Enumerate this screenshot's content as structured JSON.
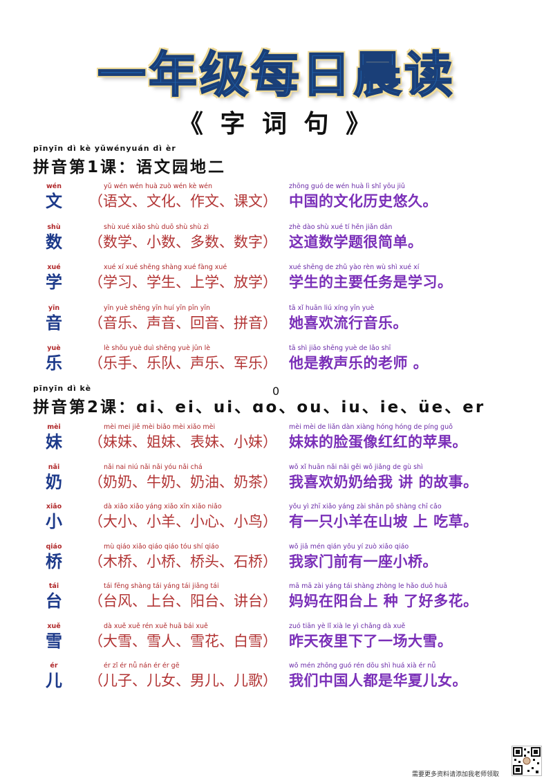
{
  "title": "一年级每日晨读",
  "subtitle": "《 字 词 句 》",
  "lessons": [
    {
      "pinyin": "pīnyīn dì  kè    yǔwényuán dì èr",
      "title": "拼音第1课：语文园地二",
      "rows": [
        {
          "char_py": "wén",
          "char": "文",
          "words_py": "yǔ wén   wén huà   zuò wén   kè wén",
          "words": "（语文、文化、作文、课文）",
          "sent_py": "zhōng guó de wén huà lì shǐ yōu jiǔ",
          "sentence": "中国的文化历史悠久。"
        },
        {
          "char_py": "shù",
          "char": "数",
          "words_py": "shù xué   xiǎo shù   duō shù   shù zì",
          "words": "（数学、小数、多数、数字）",
          "sent_py": "zhè dào shù xué tí hěn jiǎn dān",
          "sentence": "这道数学题很简单。"
        },
        {
          "char_py": "xué",
          "char": "学",
          "words_py": "xué xí   xué shēng   shàng xué   fàng xué",
          "words": "（学习、学生、上学、放学）",
          "sent_py": "xué shēng de zhǔ yào rèn wù shì xué xí",
          "sentence": "学生的主要任务是学习。"
        },
        {
          "char_py": "yīn",
          "char": "音",
          "words_py": "yīn yuè   shēng yīn   huí yīn   pīn yīn",
          "words": "（音乐、声音、回音、拼音）",
          "sent_py": "tā xǐ huān liú xíng yīn yuè",
          "sentence": "她喜欢流行音乐。"
        },
        {
          "char_py": "yuè",
          "char": "乐",
          "words_py": "lè shǒu   yuè duì   shēng yuè   jūn lè",
          "words": "（乐手、乐队、声乐、军乐）",
          "sent_py": "tā shì jiāo shēng yuè de lǎo shī",
          "sentence": "他是教声乐的老师 。"
        }
      ]
    },
    {
      "pinyin": "pīnyīn dì  kè",
      "title": "拼音第2课：ɑi、ei、ui、ɑo、ou、iu、ie、üe、er",
      "rows": [
        {
          "char_py": "mèi",
          "char": "妹",
          "words_py": "mèi mei   jiě mèi   biǎo mèi   xiǎo mèi",
          "words": "（妹妹、姐妹、表妹、小妹）",
          "sent_py": "mèi mèi de liǎn dàn xiàng hóng hóng de píng guǒ",
          "sentence": "妹妹的脸蛋像红红的苹果。"
        },
        {
          "char_py": "nǎi",
          "char": "奶",
          "words_py": "nǎi nai   niú nǎi   nǎi yóu   nǎi chá",
          "words": "（奶奶、牛奶、奶油、奶茶）",
          "sent_py": "wǒ xǐ huān nǎi nǎi gěi wǒ jiǎng de gù shì",
          "sentence": "我喜欢奶奶给我 讲 的故事。"
        },
        {
          "char_py": "xiǎo",
          "char": "小",
          "words_py": "dà xiǎo   xiǎo yáng   xiǎo xīn   xiǎo niǎo",
          "words": "（大小、小羊、小心、小鸟）",
          "sent_py": "yǒu yì zhī xiǎo yáng zài shān pō shàng chī cǎo",
          "sentence": "有一只小羊在山坡 上 吃草。"
        },
        {
          "char_py": "qiáo",
          "char": "桥",
          "words_py": "mù qiáo   xiǎo qiáo   qiáo tóu   shí qiáo",
          "words": "（木桥、小桥、桥头、石桥）",
          "sent_py": "wǒ jiā mén qián yǒu yí zuò xiǎo qiáo",
          "sentence": "我家门前有一座小桥。"
        },
        {
          "char_py": "tái",
          "char": "台",
          "words_py": "tái fēng   shàng tái   yáng tái   jiǎng tái",
          "words": "（台风、上台、阳台、讲台）",
          "sent_py": "mā mā zài yáng tái shàng zhòng le hǎo duō huā",
          "sentence": "妈妈在阳台上 种 了好多花。"
        },
        {
          "char_py": "xuě",
          "char": "雪",
          "words_py": "dà xuě   xuě rén   xuě huā   bái xuě",
          "words": "（大雪、雪人、雪花、白雪）",
          "sent_py": "zuó tiān yè lǐ xià le yì chǎng dà xuě",
          "sentence": "昨天夜里下了一场大雪。"
        },
        {
          "char_py": "ér",
          "char": "儿",
          "words_py": "ér zǐ   ér nǚ   nán ér   ér gē",
          "words": "（儿子、儿女、男儿、儿歌）",
          "sent_py": "wǒ mén zhōng guó rén dōu shì huá xià ér nǚ",
          "sentence": "我们中国人都是华夏儿女。"
        }
      ]
    }
  ],
  "stray_mark": "0",
  "footer": "需要更多资料请添加我老师领取"
}
